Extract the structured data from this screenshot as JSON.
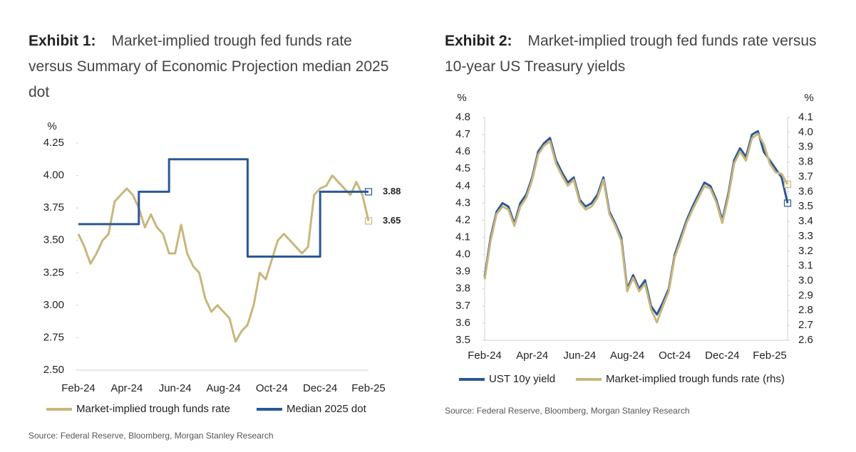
{
  "chart_data": [
    {
      "type": "line",
      "label": "Exhibit 1:",
      "title": "Market-implied trough fed funds rate versus Summary of Economic Projection median 2025 dot",
      "y_label": "%",
      "legend": "bottom",
      "source": "Source: Federal Reserve, Bloomberg, Morgan Stanley Research",
      "categories": [
        "Feb-24",
        null,
        null,
        null,
        null,
        null,
        null,
        null,
        "Apr-24",
        null,
        null,
        null,
        null,
        null,
        null,
        null,
        "Jun-24",
        null,
        null,
        null,
        null,
        null,
        null,
        null,
        "Aug-24",
        null,
        null,
        null,
        null,
        null,
        null,
        null,
        "Oct-24",
        null,
        null,
        null,
        null,
        null,
        null,
        null,
        "Dec-24",
        null,
        null,
        null,
        null,
        null,
        null,
        null,
        "Feb-25"
      ],
      "ylim": [
        2.5,
        4.25
      ],
      "yticks": [
        {
          "value": 2.5,
          "label": "2.50"
        },
        2.75,
        {
          "value": 3.0,
          "label": "3.00"
        },
        3.25,
        {
          "value": 3.5,
          "label": "3.50"
        },
        3.75,
        {
          "value": 4.0,
          "label": "4.00"
        },
        4.25
      ],
      "series": [
        {
          "name": "Market-implied trough funds rate",
          "color": "#c9b67b",
          "end_label": "3.65",
          "label_color": "#8a7a3c",
          "end_marker": true,
          "values": [
            3.55,
            3.45,
            3.32,
            3.4,
            3.5,
            3.55,
            3.8,
            3.85,
            3.9,
            3.85,
            3.75,
            3.6,
            3.7,
            3.6,
            3.55,
            3.4,
            3.4,
            3.62,
            3.4,
            3.3,
            3.25,
            3.05,
            2.95,
            3.0,
            2.95,
            2.9,
            2.72,
            2.8,
            2.85,
            3.0,
            3.25,
            3.2,
            3.35,
            3.5,
            3.55,
            3.5,
            3.45,
            3.4,
            3.45,
            3.85,
            3.9,
            3.92,
            4.0,
            3.95,
            3.9,
            3.85,
            3.95,
            3.85,
            3.65
          ]
        },
        {
          "name": "Median 2025 dot",
          "color": "#2b5797",
          "step": true,
          "end_label": "3.88",
          "label_color": "#2b5797",
          "end_marker": true,
          "values": [
            3.625,
            3.625,
            3.625,
            3.625,
            3.625,
            3.625,
            3.625,
            3.625,
            3.625,
            3.625,
            3.875,
            3.875,
            3.875,
            3.875,
            3.875,
            4.125,
            4.125,
            4.125,
            4.125,
            4.125,
            4.125,
            4.125,
            4.125,
            4.125,
            4.125,
            4.125,
            4.125,
            4.125,
            3.375,
            3.375,
            3.375,
            3.375,
            3.375,
            3.375,
            3.375,
            3.375,
            3.375,
            3.375,
            3.375,
            3.375,
            3.875,
            3.875,
            3.875,
            3.875,
            3.875,
            3.875,
            3.875,
            3.875,
            3.875
          ]
        }
      ]
    },
    {
      "type": "line",
      "label": "Exhibit 2:",
      "title": "Market-implied trough fed funds rate versus 10-year US Treasury yields",
      "y_label": "%",
      "y2_label": "%",
      "legend": "bottom",
      "source": "Source: Federal Reserve, Bloomberg, Morgan Stanley Research",
      "categories": [
        "Feb-24",
        null,
        null,
        null,
        null,
        null,
        null,
        null,
        "Apr-24",
        null,
        null,
        null,
        null,
        null,
        null,
        null,
        "Jun-24",
        null,
        null,
        null,
        null,
        null,
        null,
        null,
        "Aug-24",
        null,
        null,
        null,
        null,
        null,
        null,
        null,
        "Oct-24",
        null,
        null,
        null,
        null,
        null,
        null,
        null,
        "Dec-24",
        null,
        null,
        null,
        null,
        null,
        null,
        null,
        "Feb-25",
        null,
        null,
        null
      ],
      "ylim": [
        3.5,
        4.8
      ],
      "yticks": [
        3.5,
        3.6,
        3.7,
        3.8,
        3.9,
        {
          "value": 4.0,
          "label": "4.0"
        },
        4.1,
        4.2,
        4.3,
        4.4,
        4.5,
        4.6,
        4.7,
        4.8
      ],
      "y2lim": [
        2.6,
        4.1
      ],
      "y2ticks": [
        2.6,
        2.7,
        2.8,
        2.9,
        {
          "value": 3.0,
          "label": "3.0"
        },
        3.1,
        3.2,
        3.3,
        3.4,
        3.5,
        3.6,
        3.7,
        3.8,
        3.9,
        {
          "value": 4.0,
          "label": "4.0"
        },
        4.1
      ],
      "series": [
        {
          "name": "UST 10y yield",
          "color": "#2b5797",
          "end_marker": true,
          "values": [
            3.87,
            4.1,
            4.25,
            4.3,
            4.28,
            4.18,
            4.3,
            4.35,
            4.45,
            4.6,
            4.65,
            4.68,
            4.55,
            4.48,
            4.42,
            4.45,
            4.32,
            4.28,
            4.3,
            4.35,
            4.45,
            4.25,
            4.18,
            4.1,
            3.8,
            3.88,
            3.8,
            3.85,
            3.7,
            3.65,
            3.72,
            3.8,
            4.0,
            4.1,
            4.2,
            4.28,
            4.35,
            4.42,
            4.4,
            4.32,
            4.2,
            4.35,
            4.55,
            4.62,
            4.57,
            4.7,
            4.72,
            4.6,
            4.55,
            4.5,
            4.45,
            4.3
          ]
        },
        {
          "name": "Market-implied trough funds rate (rhs)",
          "color": "#c9b67b",
          "axis": "y2",
          "end_marker": true,
          "values": [
            3.01,
            3.27,
            3.45,
            3.5,
            3.48,
            3.37,
            3.5,
            3.56,
            3.68,
            3.85,
            3.91,
            3.94,
            3.79,
            3.71,
            3.64,
            3.68,
            3.53,
            3.48,
            3.5,
            3.56,
            3.68,
            3.45,
            3.37,
            3.27,
            2.93,
            3.02,
            2.93,
            2.98,
            2.81,
            2.72,
            2.83,
            2.93,
            3.16,
            3.27,
            3.39,
            3.48,
            3.56,
            3.64,
            3.62,
            3.53,
            3.39,
            3.56,
            3.79,
            3.87,
            3.81,
            3.96,
            3.99,
            3.92,
            3.79,
            3.73,
            3.72,
            3.65
          ]
        }
      ]
    }
  ]
}
